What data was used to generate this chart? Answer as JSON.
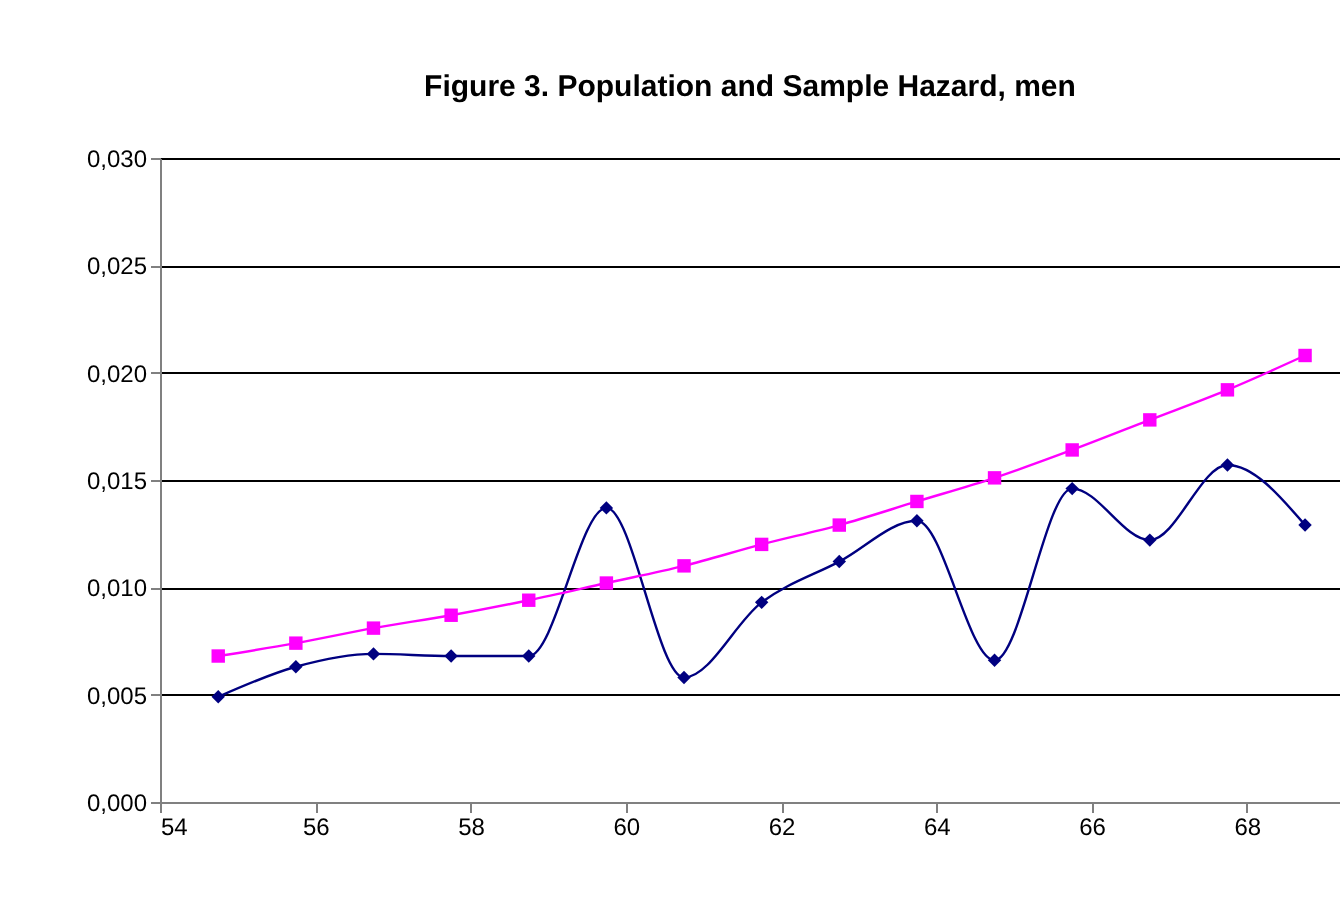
{
  "chart_data": {
    "type": "line",
    "title": "Figure 3. Population and Sample Hazard, men",
    "x": [
      54.75,
      55.75,
      56.75,
      57.75,
      58.75,
      59.75,
      60.75,
      61.75,
      62.75,
      63.75,
      64.75,
      65.75,
      66.75,
      67.75,
      68.75
    ],
    "series": [
      {
        "color": "#000080",
        "marker": "diamond",
        "values": [
          0.0049,
          0.0063,
          0.0069,
          0.0068,
          0.0068,
          0.0137,
          0.0058,
          0.0093,
          0.0112,
          0.0131,
          0.0066,
          0.0146,
          0.0122,
          0.0157,
          0.0129
        ]
      },
      {
        "color": "#ff00ff",
        "marker": "square",
        "values": [
          0.0068,
          0.0074,
          0.0081,
          0.0087,
          0.0094,
          0.0102,
          0.011,
          0.012,
          0.0129,
          0.014,
          0.0151,
          0.0164,
          0.0178,
          0.0192,
          0.0208
        ]
      }
    ],
    "xlim": [
      54,
      69.2
    ],
    "xticks": [
      54,
      56,
      58,
      60,
      62,
      64,
      66,
      68
    ],
    "ylim": [
      0,
      0.03
    ],
    "yticks": [
      {
        "value": 0,
        "label": "0,000"
      },
      {
        "value": 0.005,
        "label": "0,005"
      },
      {
        "value": 0.01,
        "label": "0,010"
      },
      {
        "value": 0.015,
        "label": "0,015"
      },
      {
        "value": 0.02,
        "label": "0,020"
      },
      {
        "value": 0.025,
        "label": "0,025"
      },
      {
        "value": 0.03,
        "label": "0,030"
      }
    ],
    "grid": "y"
  }
}
